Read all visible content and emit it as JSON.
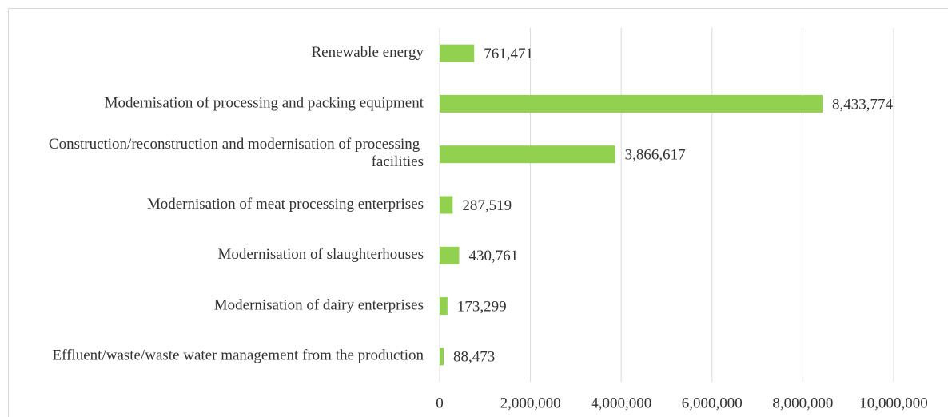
{
  "chart_data": {
    "type": "barh",
    "categories": [
      "Renewable energy",
      "Modernisation of processing and packing equipment",
      "Construction/reconstruction and modernisation of processing facilities",
      "Modernisation of meat processing enterprises",
      "Modernisation of slaughterhouses",
      "Modernisation of dairy enterprises",
      "Effluent/waste/waste water management from the production"
    ],
    "values": [
      761471,
      8433774,
      3866617,
      287519,
      430761,
      173299,
      88473
    ],
    "value_labels": [
      "761,471",
      "8,433,774",
      "3,866,617",
      "287,519",
      "430,761",
      "173,299",
      "88,473"
    ],
    "color": "#92d050",
    "xlim": [
      0,
      10000000
    ],
    "xticks": [
      0,
      {
        "value": 2000000,
        "label": "2,000,000"
      },
      {
        "value": 4000000,
        "label": "4,000,000"
      },
      {
        "value": 6000000,
        "label": "6,000,000"
      },
      {
        "value": 8000000,
        "label": "8,000,000"
      },
      {
        "value": 10000000,
        "label": "10,000,000"
      }
    ],
    "grid": true
  }
}
